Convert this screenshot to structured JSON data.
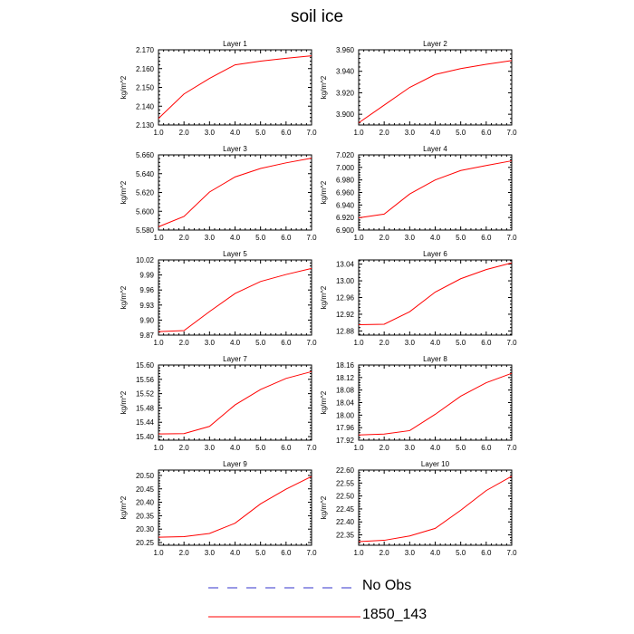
{
  "title": "soil ice",
  "ylabel": "kg/m^2",
  "legend": [
    {
      "label": "No Obs",
      "color": "#3333cc",
      "dashed": true
    },
    {
      "label": "1850_143",
      "color": "#ff0000",
      "dashed": false
    }
  ],
  "chart_data": [
    {
      "type": "line",
      "title": "Layer 1",
      "xlabel": "",
      "ylabel": "kg/m^2",
      "x": [
        1,
        2,
        3,
        4,
        5,
        6,
        7
      ],
      "xlim": [
        1,
        7
      ],
      "xticks": [
        "1.0",
        "2.0",
        "3.0",
        "4.0",
        "5.0",
        "6.0",
        "7.0"
      ],
      "ylim": [
        2.13,
        2.17
      ],
      "yticks": [
        "2.130",
        "2.140",
        "2.150",
        "2.160",
        "2.170"
      ],
      "series": [
        {
          "name": "1850_143",
          "color": "#ff0000",
          "values": [
            2.1335,
            2.1465,
            2.1548,
            2.162,
            2.164,
            2.1655,
            2.1668
          ]
        }
      ]
    },
    {
      "type": "line",
      "title": "Layer 2",
      "xlabel": "",
      "ylabel": "kg/m^2",
      "x": [
        1,
        2,
        3,
        4,
        5,
        6,
        7
      ],
      "xlim": [
        1,
        7
      ],
      "xticks": [
        "1.0",
        "2.0",
        "3.0",
        "4.0",
        "5.0",
        "6.0",
        "7.0"
      ],
      "ylim": [
        3.89,
        3.96
      ],
      "yticks": [
        "3.900",
        "3.920",
        "3.940",
        "3.960"
      ],
      "series": [
        {
          "name": "1850_143",
          "color": "#ff0000",
          "values": [
            3.892,
            3.9085,
            3.925,
            3.937,
            3.9425,
            3.9465,
            3.95
          ]
        }
      ]
    },
    {
      "type": "line",
      "title": "Layer 3",
      "xlabel": "",
      "ylabel": "kg/m^2",
      "x": [
        1,
        2,
        3,
        4,
        5,
        6,
        7
      ],
      "xlim": [
        1,
        7
      ],
      "xticks": [
        "1.0",
        "2.0",
        "3.0",
        "4.0",
        "5.0",
        "6.0",
        "7.0"
      ],
      "ylim": [
        5.58,
        5.66
      ],
      "yticks": [
        "5.580",
        "5.600",
        "5.620",
        "5.640",
        "5.660"
      ],
      "series": [
        {
          "name": "1850_143",
          "color": "#ff0000",
          "values": [
            5.5835,
            5.5945,
            5.6205,
            5.6365,
            5.6455,
            5.6515,
            5.6565
          ]
        }
      ]
    },
    {
      "type": "line",
      "title": "Layer 4",
      "xlabel": "",
      "ylabel": "kg/m^2",
      "x": [
        1,
        2,
        3,
        4,
        5,
        6,
        7
      ],
      "xlim": [
        1,
        7
      ],
      "xticks": [
        "1.0",
        "2.0",
        "3.0",
        "4.0",
        "5.0",
        "6.0",
        "7.0"
      ],
      "ylim": [
        6.9,
        7.02
      ],
      "yticks": [
        "6.900",
        "6.920",
        "6.940",
        "6.960",
        "6.980",
        "7.000",
        "7.020"
      ],
      "series": [
        {
          "name": "1850_143",
          "color": "#ff0000",
          "values": [
            6.9195,
            6.9255,
            6.9575,
            6.98,
            6.995,
            7.003,
            7.0105
          ]
        }
      ]
    },
    {
      "type": "line",
      "title": "Layer 5",
      "xlabel": "",
      "ylabel": "kg/m^2",
      "x": [
        1,
        2,
        3,
        4,
        5,
        6,
        7
      ],
      "xlim": [
        1,
        7
      ],
      "xticks": [
        "1.0",
        "2.0",
        "3.0",
        "4.0",
        "5.0",
        "6.0",
        "7.0"
      ],
      "ylim": [
        9.87,
        10.02
      ],
      "yticks": [
        "9.87",
        "9.90",
        "9.93",
        "9.96",
        "9.99",
        "10.02"
      ],
      "series": [
        {
          "name": "1850_143",
          "color": "#ff0000",
          "values": [
            9.877,
            9.879,
            9.917,
            9.953,
            9.977,
            9.991,
            10.003
          ]
        }
      ]
    },
    {
      "type": "line",
      "title": "Layer 6",
      "xlabel": "",
      "ylabel": "kg/m^2",
      "x": [
        1,
        2,
        3,
        4,
        5,
        6,
        7
      ],
      "xlim": [
        1,
        7
      ],
      "xticks": [
        "1.0",
        "2.0",
        "3.0",
        "4.0",
        "5.0",
        "6.0",
        "7.0"
      ],
      "ylim": [
        12.87,
        13.05
      ],
      "yticks": [
        "12.88",
        "12.92",
        "12.96",
        "13.00",
        "13.04"
      ],
      "series": [
        {
          "name": "1850_143",
          "color": "#ff0000",
          "values": [
            12.895,
            12.896,
            12.926,
            12.973,
            13.005,
            13.027,
            13.043
          ]
        }
      ]
    },
    {
      "type": "line",
      "title": "Layer 7",
      "xlabel": "",
      "ylabel": "kg/m^2",
      "x": [
        1,
        2,
        3,
        4,
        5,
        6,
        7
      ],
      "xlim": [
        1,
        7
      ],
      "xticks": [
        "1.0",
        "2.0",
        "3.0",
        "4.0",
        "5.0",
        "6.0",
        "7.0"
      ],
      "ylim": [
        15.39,
        15.6
      ],
      "yticks": [
        "15.40",
        "15.44",
        "15.48",
        "15.52",
        "15.56",
        "15.60"
      ],
      "series": [
        {
          "name": "1850_143",
          "color": "#ff0000",
          "values": [
            15.4075,
            15.4085,
            15.4285,
            15.4885,
            15.5315,
            15.5625,
            15.5815
          ]
        }
      ]
    },
    {
      "type": "line",
      "title": "Layer 8",
      "xlabel": "",
      "ylabel": "kg/m^2",
      "x": [
        1,
        2,
        3,
        4,
        5,
        6,
        7
      ],
      "xlim": [
        1,
        7
      ],
      "xticks": [
        "1.0",
        "2.0",
        "3.0",
        "4.0",
        "5.0",
        "6.0",
        "7.0"
      ],
      "ylim": [
        17.92,
        18.16
      ],
      "yticks": [
        "17.92",
        "17.96",
        "18.00",
        "18.04",
        "18.08",
        "18.12",
        "18.16"
      ],
      "series": [
        {
          "name": "1850_143",
          "color": "#ff0000",
          "values": [
            17.9365,
            17.9395,
            17.9505,
            18.0025,
            18.0605,
            18.1035,
            18.1335
          ]
        }
      ]
    },
    {
      "type": "line",
      "title": "Layer 9",
      "xlabel": "",
      "ylabel": "kg/m^2",
      "x": [
        1,
        2,
        3,
        4,
        5,
        6,
        7
      ],
      "xlim": [
        1,
        7
      ],
      "xticks": [
        "1.0",
        "2.0",
        "3.0",
        "4.0",
        "5.0",
        "6.0",
        "7.0"
      ],
      "ylim": [
        20.24,
        20.52
      ],
      "yticks": [
        "20.25",
        "20.30",
        "20.35",
        "20.40",
        "20.45",
        "20.50"
      ],
      "series": [
        {
          "name": "1850_143",
          "color": "#ff0000",
          "values": [
            20.27,
            20.272,
            20.284,
            20.322,
            20.394,
            20.449,
            20.496
          ]
        }
      ]
    },
    {
      "type": "line",
      "title": "Layer 10",
      "xlabel": "",
      "ylabel": "kg/m^2",
      "x": [
        1,
        2,
        3,
        4,
        5,
        6,
        7
      ],
      "xlim": [
        1,
        7
      ],
      "xticks": [
        "1.0",
        "2.0",
        "3.0",
        "4.0",
        "5.0",
        "6.0",
        "7.0"
      ],
      "ylim": [
        22.31,
        22.6
      ],
      "yticks": [
        "22.35",
        "22.40",
        "22.45",
        "22.50",
        "22.55",
        "22.60"
      ],
      "series": [
        {
          "name": "1850_143",
          "color": "#ff0000",
          "values": [
            22.324,
            22.329,
            22.346,
            22.375,
            22.445,
            22.521,
            22.576
          ]
        }
      ]
    }
  ]
}
